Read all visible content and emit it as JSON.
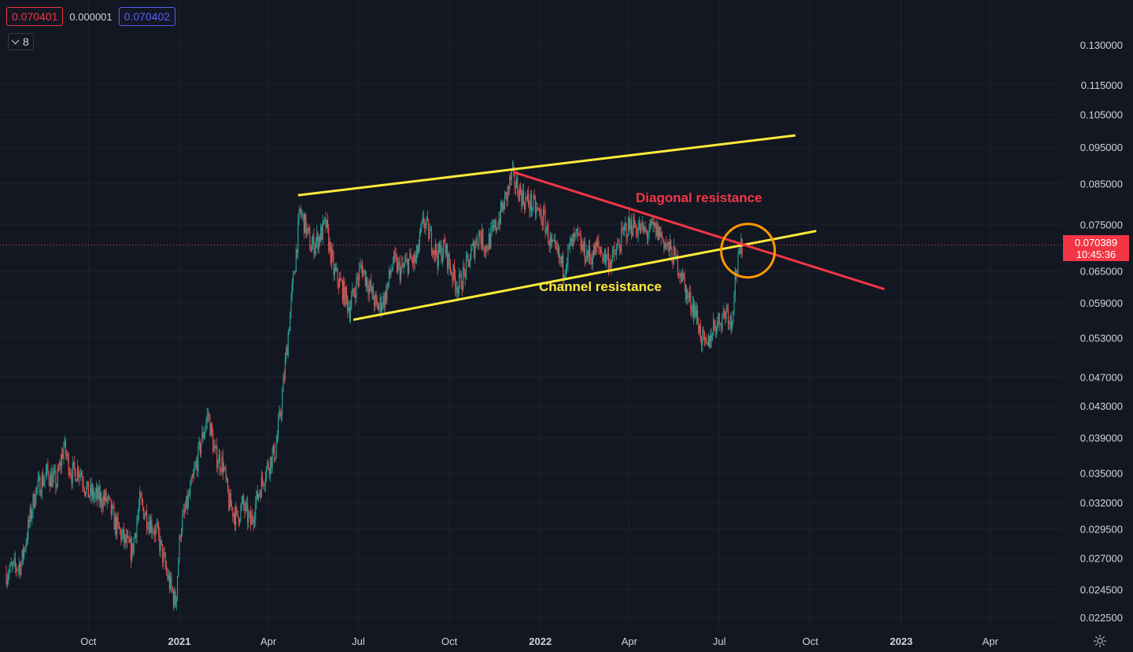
{
  "header": {
    "bid": "0.070401",
    "spread": "0.000001",
    "ask": "0.070402",
    "indicators_count": "8"
  },
  "last_price": {
    "value": "0.070389",
    "countdown": "10:45:36"
  },
  "colors": {
    "background": "#131722",
    "grid": "#1e222d",
    "up": "#26a69a",
    "down": "#ef5350",
    "channel": "#ffeb3b",
    "diagonal": "#f23645",
    "circle": "#ff9800"
  },
  "chart_data": {
    "type": "candlestick",
    "y_scale": "log",
    "ylim": [
      0.0217,
      0.155
    ],
    "y_ticks": [
      "0.130000",
      "0.115000",
      "0.105000",
      "0.095000",
      "0.085000",
      "0.075000",
      "0.065000",
      "0.059000",
      "0.053000",
      "0.047000",
      "0.043000",
      "0.039000",
      "0.035000",
      "0.032000",
      "0.029500",
      "0.027000",
      "0.024500",
      "0.022500"
    ],
    "x_ticks": [
      {
        "label": "Oct",
        "date": "2020-10-01",
        "bold": false
      },
      {
        "label": "2021",
        "date": "2021-01-01",
        "bold": true
      },
      {
        "label": "Apr",
        "date": "2021-04-01",
        "bold": false
      },
      {
        "label": "Jul",
        "date": "2021-07-01",
        "bold": false
      },
      {
        "label": "Oct",
        "date": "2021-10-01",
        "bold": false
      },
      {
        "label": "2022",
        "date": "2022-01-01",
        "bold": true
      },
      {
        "label": "Apr",
        "date": "2022-04-01",
        "bold": false
      },
      {
        "label": "Jul",
        "date": "2022-07-01",
        "bold": false
      },
      {
        "label": "Oct",
        "date": "2022-10-01",
        "bold": false
      },
      {
        "label": "2023",
        "date": "2023-01-01",
        "bold": true
      },
      {
        "label": "Apr",
        "date": "2023-04-01",
        "bold": false
      }
    ],
    "price_path": [
      [
        "2020-07-10",
        0.0258
      ],
      [
        "2020-07-25",
        0.0265
      ],
      [
        "2020-08-08",
        0.033
      ],
      [
        "2020-08-20",
        0.035
      ],
      [
        "2020-08-30",
        0.034
      ],
      [
        "2020-09-06",
        0.038
      ],
      [
        "2020-09-14",
        0.035
      ],
      [
        "2020-09-22",
        0.0355
      ],
      [
        "2020-09-30",
        0.033
      ],
      [
        "2020-10-10",
        0.0325
      ],
      [
        "2020-10-20",
        0.0322
      ],
      [
        "2020-10-28",
        0.03
      ],
      [
        "2020-11-06",
        0.0285
      ],
      [
        "2020-11-14",
        0.0275
      ],
      [
        "2020-11-22",
        0.032
      ],
      [
        "2020-11-30",
        0.0305
      ],
      [
        "2020-12-10",
        0.029
      ],
      [
        "2020-12-20",
        0.0255
      ],
      [
        "2020-12-28",
        0.0235
      ],
      [
        "2021-01-02",
        0.0295
      ],
      [
        "2021-01-12",
        0.033
      ],
      [
        "2021-01-22",
        0.038
      ],
      [
        "2021-01-30",
        0.042
      ],
      [
        "2021-02-06",
        0.037
      ],
      [
        "2021-02-14",
        0.036
      ],
      [
        "2021-02-20",
        0.032
      ],
      [
        "2021-02-28",
        0.0305
      ],
      [
        "2021-03-06",
        0.0318
      ],
      [
        "2021-03-14",
        0.03
      ],
      [
        "2021-03-22",
        0.033
      ],
      [
        "2021-03-30",
        0.0355
      ],
      [
        "2021-04-08",
        0.0375
      ],
      [
        "2021-04-14",
        0.043
      ],
      [
        "2021-04-20",
        0.052
      ],
      [
        "2021-04-27",
        0.065
      ],
      [
        "2021-05-03",
        0.078
      ],
      [
        "2021-05-08",
        0.075
      ],
      [
        "2021-05-14",
        0.07
      ],
      [
        "2021-05-22",
        0.072
      ],
      [
        "2021-05-29",
        0.075
      ],
      [
        "2021-06-06",
        0.065
      ],
      [
        "2021-06-14",
        0.062
      ],
      [
        "2021-06-22",
        0.058
      ],
      [
        "2021-06-28",
        0.062
      ],
      [
        "2021-07-04",
        0.066
      ],
      [
        "2021-07-12",
        0.062
      ],
      [
        "2021-07-20",
        0.058
      ],
      [
        "2021-07-28",
        0.06
      ],
      [
        "2021-08-05",
        0.067
      ],
      [
        "2021-08-13",
        0.065
      ],
      [
        "2021-08-21",
        0.067
      ],
      [
        "2021-08-28",
        0.067
      ],
      [
        "2021-09-05",
        0.076
      ],
      [
        "2021-09-12",
        0.072
      ],
      [
        "2021-09-19",
        0.068
      ],
      [
        "2021-09-26",
        0.07
      ],
      [
        "2021-10-03",
        0.065
      ],
      [
        "2021-10-10",
        0.062
      ],
      [
        "2021-10-17",
        0.065
      ],
      [
        "2021-10-24",
        0.069
      ],
      [
        "2021-10-31",
        0.073
      ],
      [
        "2021-11-07",
        0.07
      ],
      [
        "2021-11-14",
        0.073
      ],
      [
        "2021-11-21",
        0.077
      ],
      [
        "2021-11-28",
        0.082
      ],
      [
        "2021-12-03",
        0.087
      ],
      [
        "2021-12-09",
        0.084
      ],
      [
        "2021-12-15",
        0.081
      ],
      [
        "2021-12-22",
        0.08
      ],
      [
        "2021-12-29",
        0.078
      ],
      [
        "2022-01-05",
        0.076
      ],
      [
        "2022-01-12",
        0.07
      ],
      [
        "2022-01-19",
        0.068
      ],
      [
        "2022-01-24",
        0.0655
      ],
      [
        "2022-01-31",
        0.07
      ],
      [
        "2022-02-07",
        0.072
      ],
      [
        "2022-02-14",
        0.069
      ],
      [
        "2022-02-21",
        0.068
      ],
      [
        "2022-02-28",
        0.07
      ],
      [
        "2022-03-07",
        0.068
      ],
      [
        "2022-03-14",
        0.067
      ],
      [
        "2022-03-21",
        0.07
      ],
      [
        "2022-03-28",
        0.074
      ],
      [
        "2022-04-04",
        0.075
      ],
      [
        "2022-04-11",
        0.074
      ],
      [
        "2022-04-18",
        0.073
      ],
      [
        "2022-04-25",
        0.074
      ],
      [
        "2022-05-02",
        0.073
      ],
      [
        "2022-05-09",
        0.07
      ],
      [
        "2022-05-16",
        0.068
      ],
      [
        "2022-05-23",
        0.065
      ],
      [
        "2022-05-30",
        0.06
      ],
      [
        "2022-06-06",
        0.058
      ],
      [
        "2022-06-13",
        0.053
      ],
      [
        "2022-06-18",
        0.051
      ],
      [
        "2022-06-25",
        0.055
      ],
      [
        "2022-07-02",
        0.056
      ],
      [
        "2022-07-09",
        0.058
      ],
      [
        "2022-07-13",
        0.055
      ],
      [
        "2022-07-17",
        0.064
      ],
      [
        "2022-07-21",
        0.0675
      ],
      [
        "2022-07-24",
        0.0704
      ]
    ],
    "trendlines": {
      "channel_upper": {
        "from": [
          "2021-05-01",
          0.082
        ],
        "to": [
          "2022-09-16",
          0.0985
        ]
      },
      "channel_lower": {
        "from": [
          "2021-06-26",
          0.056
        ],
        "to": [
          "2022-10-07",
          0.0735
        ]
      },
      "diagonal": {
        "from": [
          "2021-12-05",
          0.088
        ],
        "to": [
          "2022-12-15",
          0.0615
        ]
      }
    },
    "highlight_circle": {
      "center": [
        "2022-07-30",
        0.0692
      ]
    },
    "annotations": {
      "diagonal_label": "Diagonal resistance",
      "channel_label": "Channel resistance"
    },
    "last_price": 0.070389
  }
}
